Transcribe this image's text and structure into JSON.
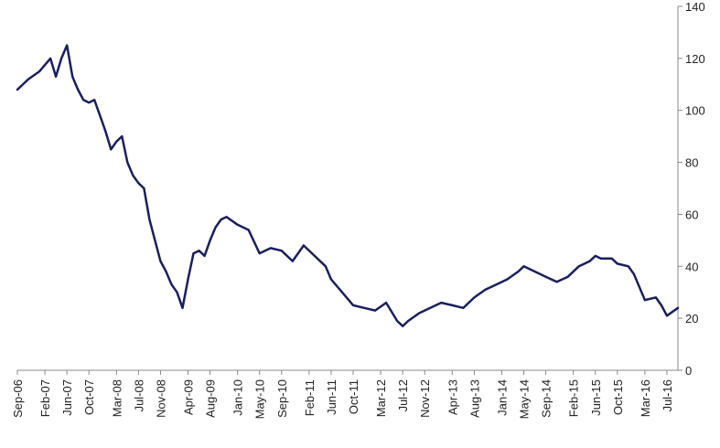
{
  "chart_data": {
    "type": "line",
    "title": "",
    "xlabel": "",
    "ylabel": "",
    "ylim": [
      0,
      140
    ],
    "y_ticks": [
      0,
      20,
      40,
      60,
      80,
      100,
      120,
      140
    ],
    "y_axis_side": "right",
    "grid": false,
    "legend": "none",
    "line_color": "#1a1f5e",
    "x_tick_labels": [
      "Sep-06",
      "Feb-07",
      "Jun-07",
      "Oct-07",
      "Mar-08",
      "Jul-08",
      "Nov-08",
      "Apr-09",
      "Aug-09",
      "Jan-10",
      "May-10",
      "Sep-10",
      "Feb-11",
      "Jun-11",
      "Oct-11",
      "Mar-12",
      "Jul-12",
      "Nov-12",
      "Apr-13",
      "Aug-13",
      "Jan-14",
      "May-14",
      "Sep-14",
      "Feb-15",
      "Jun-15",
      "Oct-15",
      "Mar-16",
      "Jul-16"
    ],
    "series": [
      {
        "x": [
          "Sep-06",
          "Nov-06",
          "Jan-07",
          "Mar-07",
          "Apr-07",
          "May-07",
          "Jun-07",
          "Jul-07",
          "Aug-07",
          "Sep-07",
          "Oct-07",
          "Nov-07",
          "Dec-07",
          "Jan-08",
          "Feb-08",
          "Mar-08",
          "Apr-08",
          "May-08",
          "Jun-08",
          "Jul-08",
          "Aug-08",
          "Sep-08",
          "Oct-08",
          "Nov-08",
          "Dec-08",
          "Jan-09",
          "Feb-09",
          "Mar-09",
          "Apr-09",
          "May-09",
          "Jun-09",
          "Jul-09",
          "Aug-09",
          "Sep-09",
          "Oct-09",
          "Nov-09",
          "Jan-10",
          "Mar-10",
          "May-10",
          "Jul-10",
          "Sep-10",
          "Nov-10",
          "Jan-11",
          "Mar-11",
          "May-11",
          "Jun-11",
          "Aug-11",
          "Oct-11",
          "Dec-11",
          "Feb-12",
          "Apr-12",
          "Jun-12",
          "Jul-12",
          "Aug-12",
          "Oct-12",
          "Dec-12",
          "Feb-13",
          "Apr-13",
          "Jun-13",
          "Aug-13",
          "Oct-13",
          "Dec-13",
          "Feb-14",
          "Apr-14",
          "May-14",
          "Jul-14",
          "Sep-14",
          "Nov-14",
          "Jan-15",
          "Mar-15",
          "May-15",
          "Jun-15",
          "Jul-15",
          "Sep-15",
          "Oct-15",
          "Dec-15",
          "Jan-16",
          "Mar-16",
          "May-16",
          "Jun-16",
          "Jul-16",
          "Sep-16"
        ],
        "values": [
          108,
          112,
          115,
          120,
          113,
          120,
          125,
          113,
          108,
          104,
          103,
          104,
          98,
          92,
          85,
          88,
          90,
          80,
          75,
          72,
          70,
          58,
          50,
          42,
          38,
          33,
          30,
          24,
          35,
          45,
          46,
          44,
          50,
          55,
          58,
          59,
          56,
          54,
          45,
          47,
          46,
          42,
          48,
          44,
          40,
          35,
          30,
          25,
          24,
          23,
          26,
          19,
          17,
          19,
          22,
          24,
          26,
          25,
          24,
          28,
          31,
          33,
          35,
          38,
          40,
          38,
          36,
          34,
          36,
          40,
          42,
          44,
          43,
          43,
          41,
          40,
          37,
          27,
          28,
          25,
          21,
          24
        ]
      }
    ]
  }
}
